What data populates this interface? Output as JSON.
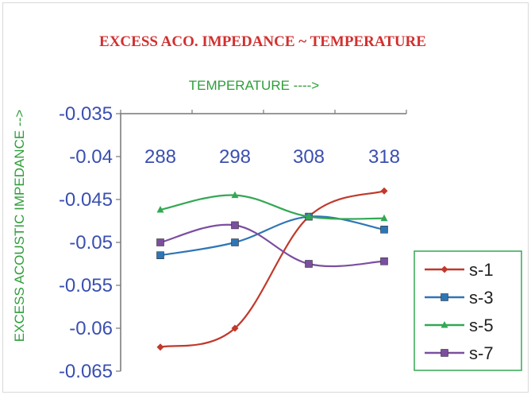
{
  "chart_data": {
    "type": "line",
    "title": "EXCESS ACO. IMPEDANCE ~  TEMPERATURE",
    "xlabel": "TEMPERATURE ---->",
    "ylabel": "EXCESS ACOUSTIC IMPEDANCE -->",
    "categories": [
      "288",
      "298",
      "308",
      "318"
    ],
    "ylim": [
      -0.065,
      -0.035
    ],
    "ystep": 0.005,
    "yticks": [
      "-0.035",
      "-0.04",
      "-0.045",
      "-0.05",
      "-0.055",
      "-0.06",
      "-0.065"
    ],
    "x_axis_position": "top",
    "y_axis_reversed": true,
    "grid": false,
    "legend_position": "bottom-right",
    "series": [
      {
        "name": "s-1",
        "color": "#c0392b",
        "marker": "diamond",
        "values": [
          -0.0622,
          -0.06,
          -0.047,
          -0.044
        ]
      },
      {
        "name": "s-3",
        "color": "#2e75b6",
        "marker": "square",
        "values": [
          -0.0515,
          -0.05,
          -0.047,
          -0.0485
        ]
      },
      {
        "name": "s-5",
        "color": "#33a853",
        "marker": "triangle",
        "values": [
          -0.0462,
          -0.0445,
          -0.047,
          -0.0472
        ]
      },
      {
        "name": "s-7",
        "color": "#7b4fa0",
        "marker": "square",
        "values": [
          -0.05,
          -0.048,
          -0.0525,
          -0.0522
        ]
      }
    ],
    "colors": {
      "title": "#d32f2f",
      "xlabel": "#2e9e3a",
      "ylabel": "#2e9e3a",
      "xticks": "#3a4fb0",
      "yticks": "#3a4fb0",
      "axis": "#777777",
      "legend_border": "#33a853"
    }
  }
}
